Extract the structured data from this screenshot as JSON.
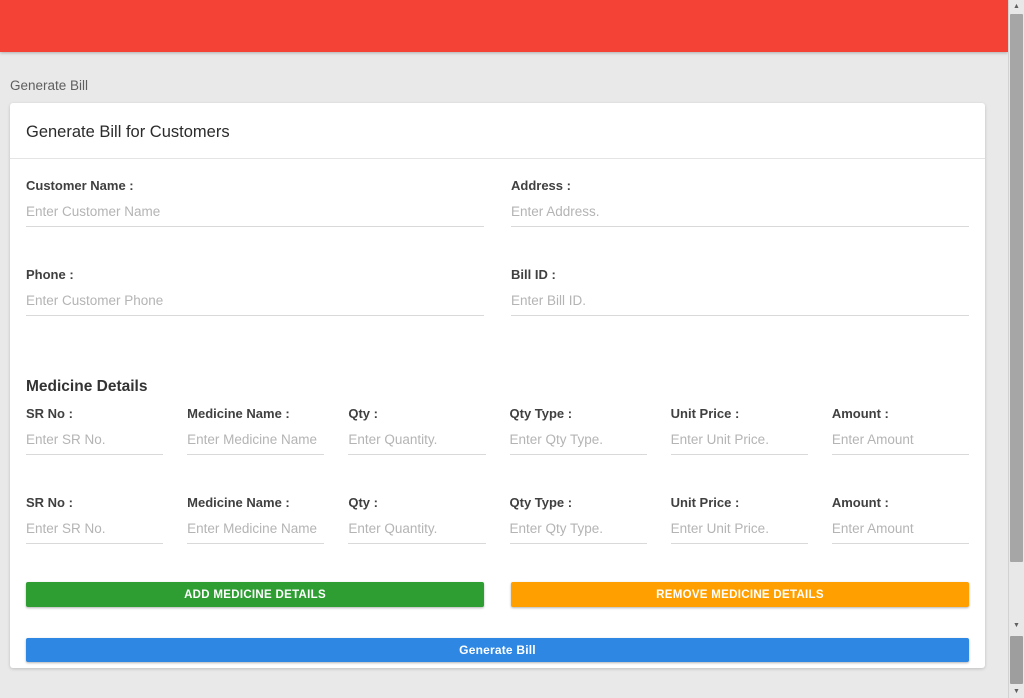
{
  "header": {
    "background_color": "#f44336"
  },
  "breadcrumb": {
    "label": "Generate Bill"
  },
  "card": {
    "title": "Generate Bill for Customers"
  },
  "customer_form": {
    "fields": [
      {
        "label": "Customer Name :",
        "placeholder": "Enter Customer Name",
        "value": ""
      },
      {
        "label": "Address :",
        "placeholder": "Enter Address.",
        "value": ""
      },
      {
        "label": "Phone :",
        "placeholder": "Enter Customer Phone",
        "value": ""
      },
      {
        "label": "Bill ID :",
        "placeholder": "Enter Bill ID.",
        "value": ""
      }
    ]
  },
  "medicine_details": {
    "title": "Medicine Details",
    "rows": [
      {
        "fields": [
          {
            "label": "SR No :",
            "placeholder": "Enter SR No.",
            "value": ""
          },
          {
            "label": "Medicine Name :",
            "placeholder": "Enter Medicine Name",
            "value": ""
          },
          {
            "label": "Qty :",
            "placeholder": "Enter Quantity.",
            "value": ""
          },
          {
            "label": "Qty Type :",
            "placeholder": "Enter Qty Type.",
            "value": ""
          },
          {
            "label": "Unit Price :",
            "placeholder": "Enter Unit Price.",
            "value": ""
          },
          {
            "label": "Amount :",
            "placeholder": "Enter Amount",
            "value": ""
          }
        ]
      },
      {
        "fields": [
          {
            "label": "SR No :",
            "placeholder": "Enter SR No.",
            "value": ""
          },
          {
            "label": "Medicine Name :",
            "placeholder": "Enter Medicine Name",
            "value": ""
          },
          {
            "label": "Qty :",
            "placeholder": "Enter Quantity.",
            "value": ""
          },
          {
            "label": "Qty Type :",
            "placeholder": "Enter Qty Type.",
            "value": ""
          },
          {
            "label": "Unit Price :",
            "placeholder": "Enter Unit Price.",
            "value": ""
          },
          {
            "label": "Amount :",
            "placeholder": "Enter Amount",
            "value": ""
          }
        ]
      }
    ]
  },
  "actions": {
    "add_medicine": {
      "label": "ADD MEDICINE DETAILS",
      "color": "#2e9e33"
    },
    "remove_medicine": {
      "label": "REMOVE MEDICINE DETAILS",
      "color": "#ffa000"
    },
    "generate_bill": {
      "label": "Generate Bill",
      "color": "#2e87e2"
    }
  },
  "icons": {
    "scroll_up": "▲",
    "scroll_down": "▼"
  }
}
